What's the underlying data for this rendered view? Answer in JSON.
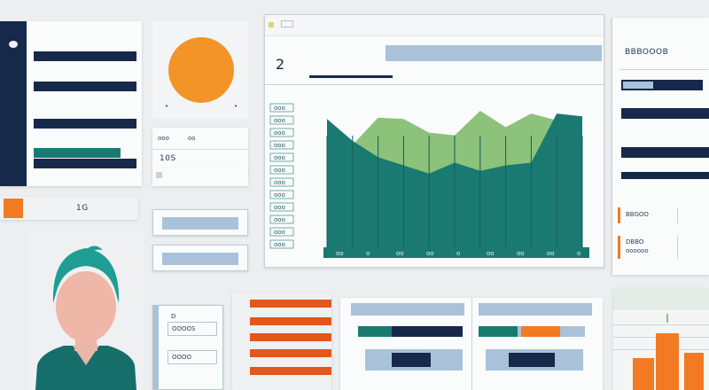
{
  "sidebar": {
    "badge_text": "0"
  },
  "stats_card": {
    "title": "10S",
    "tiny_a": "ooo",
    "tiny_b": "oo"
  },
  "tab_field": {
    "label": "1G"
  },
  "chart_header": {
    "number": "2"
  },
  "chart_data": {
    "type": "area",
    "series": [
      {
        "name": "",
        "values": [
          88,
          75,
          95,
          94,
          84,
          82,
          100,
          88,
          98,
          93,
          95
        ]
      },
      {
        "name": "",
        "values": [
          94,
          78,
          66,
          60,
          54,
          62,
          56,
          60,
          62,
          98,
          96
        ]
      }
    ],
    "y_tick_labels": [
      "ooo",
      "ooo",
      "ooo",
      "ooo",
      "ooo",
      "ooo",
      "ooo",
      "ooo",
      "ooo",
      "ooo",
      "ooo",
      "ooo"
    ],
    "x_tick_labels": [
      "oo",
      "o",
      "oo",
      "oo",
      "o",
      "oo",
      "oo",
      "oo",
      "o"
    ]
  },
  "right_panel": {
    "title": "BBBOOOB",
    "item_a": "BBGOO",
    "item_b": "DBBO",
    "item_b_sub": "oooooo"
  },
  "bottom_left": {
    "label_a": "D",
    "label_b": "OOOOS",
    "label_c": "OOOO"
  },
  "colors": {
    "navy": "#16294a",
    "teal": "#1a7a72",
    "green": "#8cc27a",
    "orange": "#f29428",
    "orange_red": "#e2571c",
    "steel_blue": "#a9c2d9"
  }
}
